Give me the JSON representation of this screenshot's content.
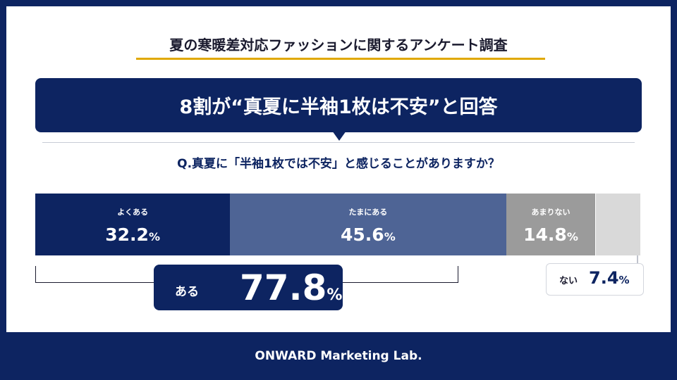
{
  "survey_title": "夏の寒暖差対応ファッションに関するアンケート調査",
  "headline": "8割が“真夏に半袖1枚は不安”と回答",
  "question": "Q.真夏に「半袖1枚では不安」と感じることがありますか？",
  "colors": {
    "navy": "#0d2461",
    "accent_gold": "#e0a800"
  },
  "chart_data": {
    "type": "bar",
    "orientation": "horizontal-stacked-100",
    "categories": [
      "よくある",
      "たまにある",
      "あまりない",
      ""
    ],
    "values": [
      32.2,
      45.6,
      14.8,
      7.4
    ],
    "value_labels": [
      "32.2",
      "45.6",
      "14.8",
      ""
    ],
    "unit": "%",
    "colors": [
      "#0d2461",
      "#4e6495",
      "#9b9b9b",
      "#d9d9d9"
    ],
    "groups": [
      {
        "label": "ある",
        "value": "77.8",
        "unit": "%",
        "covers": [
          "よくある",
          "たまにある"
        ]
      },
      {
        "label": "ない",
        "value": "7.4",
        "unit": "%"
      }
    ]
  },
  "footer": "ONWARD Marketing Lab."
}
